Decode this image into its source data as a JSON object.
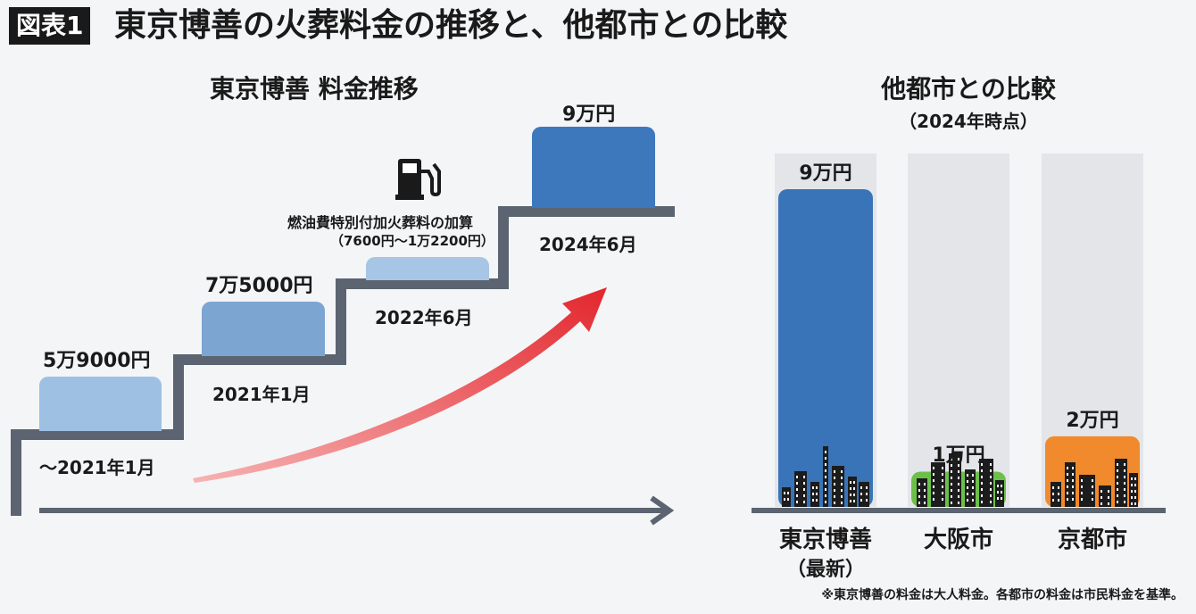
{
  "header": {
    "badge": "図表1",
    "title": "東京博善の火葬料金の推移と、他都市との比較"
  },
  "left_chart": {
    "title": "東京博善 料金推移",
    "icon": "fuel-pump-icon",
    "note_title": "燃油費特別付加火葬料の加算",
    "note_range": "（7600円～1万2200円）"
  },
  "right_chart": {
    "title": "他都市との比較",
    "subtitle": "（2024年時点）"
  },
  "footnote": "※東京博善の料金は大人料金。各都市の料金は市民料金を基準。",
  "chart_data": [
    {
      "type": "bar",
      "title": "東京博善 料金推移",
      "categories": [
        "～2021年1月",
        "2021年1月",
        "2022年6月",
        "2024年6月"
      ],
      "values": [
        59000,
        75000,
        7600,
        90000
      ],
      "value_labels": [
        "5万9000円",
        "7万5000円",
        "",
        "9万円"
      ],
      "colors": [
        "#9dc0e3",
        "#7da5d2",
        "#a7c5e5",
        "#3d78bd"
      ]
    },
    {
      "type": "bar",
      "title": "他都市との比較",
      "subtitle": "（2024年時点）",
      "categories": [
        "東京博善",
        "大阪市",
        "京都市"
      ],
      "category_notes": [
        "（最新）",
        "",
        ""
      ],
      "values": [
        90000,
        10000,
        20000
      ],
      "value_labels": [
        "9万円",
        "1万円",
        "2万円"
      ],
      "ylim": [
        0,
        90000
      ],
      "colors": [
        "#3a74b8",
        "#6cc04a",
        "#f08a2c"
      ]
    }
  ]
}
